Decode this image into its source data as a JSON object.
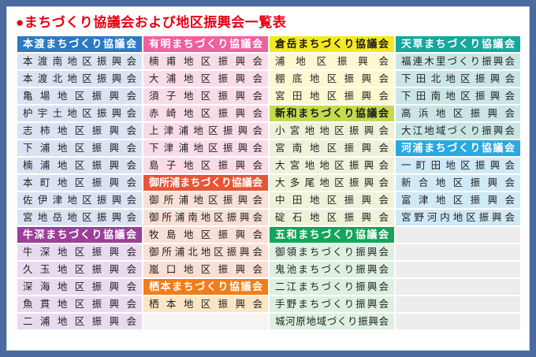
{
  "title": "●まちづくり協議会および地区振興会一覧表",
  "title_color": "#e50012",
  "frame_border_color": "#4a6b9e",
  "palette": {
    "hondo_header": {
      "bg": "#2b7ac4",
      "fg": "#ffffff"
    },
    "hondo_item": {
      "bg": "#dae3f3",
      "fg": "#222222"
    },
    "ushibuka_header": {
      "bg": "#9c3f9b",
      "fg": "#ffffff"
    },
    "ushibuka_item": {
      "bg": "#e9daf0",
      "fg": "#222222"
    },
    "ariake_header": {
      "bg": "#ee619e",
      "fg": "#ffffff"
    },
    "ariake_item": {
      "bg": "#fadce8",
      "fg": "#222222"
    },
    "goshoura_header": {
      "bg": "#e75437",
      "fg": "#ffffff"
    },
    "goshoura_item": {
      "bg": "#fadfd6",
      "fg": "#222222"
    },
    "sumoto_header": {
      "bg": "#f07d1b",
      "fg": "#ffffff"
    },
    "sumoto_item": {
      "bg": "#fbe6c3",
      "fg": "#222222"
    },
    "kuratake_header": {
      "bg": "#f4e823",
      "fg": "#1a1a1a"
    },
    "kuratake_item": {
      "bg": "#fcf8d0",
      "fg": "#222222"
    },
    "shinwa_header": {
      "bg": "#c6d94f",
      "fg": "#1a1a1a"
    },
    "shinwa_item": {
      "bg": "#eef2d9",
      "fg": "#222222"
    },
    "itsuwa_header": {
      "bg": "#13a65b",
      "fg": "#ffffff"
    },
    "itsuwa_item": {
      "bg": "#def0e0",
      "fg": "#222222"
    },
    "amakusa_header": {
      "bg": "#17a79d",
      "fg": "#ffffff"
    },
    "amakusa_item": {
      "bg": "#c9e6e5",
      "fg": "#222222"
    },
    "kawaura_header": {
      "bg": "#2aa9e1",
      "fg": "#ffffff"
    },
    "kawaura_item": {
      "bg": "#cfe9f7",
      "fg": "#222222"
    },
    "empty_light": {
      "bg": "#f6f4f2",
      "fg": "#222222"
    },
    "empty_gray": {
      "bg": "#ededed",
      "fg": "#222222"
    }
  },
  "columns": [
    {
      "cells": [
        {
          "kind": "header",
          "style": "hondo_header",
          "text": "本渡まちづくり協議会"
        },
        {
          "kind": "item",
          "style": "hondo_item",
          "text": "本渡南地区振興会"
        },
        {
          "kind": "item",
          "style": "hondo_item",
          "text": "本渡北地区振興会"
        },
        {
          "kind": "item",
          "style": "hondo_item",
          "text": "亀場地区振興会"
        },
        {
          "kind": "item",
          "style": "hondo_item",
          "text": "枦宇土地区振興会"
        },
        {
          "kind": "item",
          "style": "hondo_item",
          "text": "志柿地区振興会"
        },
        {
          "kind": "item",
          "style": "hondo_item",
          "text": "下浦地区振興会"
        },
        {
          "kind": "item",
          "style": "hondo_item",
          "text": "楠浦地区振興会"
        },
        {
          "kind": "item",
          "style": "hondo_item",
          "text": "本町地区振興会"
        },
        {
          "kind": "item",
          "style": "hondo_item",
          "text": "佐伊津地区振興会"
        },
        {
          "kind": "item",
          "style": "hondo_item",
          "text": "宮地岳地区振興会"
        },
        {
          "kind": "header",
          "style": "ushibuka_header",
          "text": "牛深まちづくり協議会"
        },
        {
          "kind": "item",
          "style": "ushibuka_item",
          "text": "牛深地区振興会"
        },
        {
          "kind": "item",
          "style": "ushibuka_item",
          "text": "久玉地区振興会"
        },
        {
          "kind": "item",
          "style": "ushibuka_item",
          "text": "深海地区振興会"
        },
        {
          "kind": "item",
          "style": "ushibuka_item",
          "text": "魚貫地区振興会"
        },
        {
          "kind": "item",
          "style": "ushibuka_item",
          "text": "二浦地区振興会"
        }
      ]
    },
    {
      "cells": [
        {
          "kind": "header",
          "style": "ariake_header",
          "text": "有明まちづくり協議会"
        },
        {
          "kind": "item",
          "style": "ariake_item",
          "text": "楠甫地区振興会"
        },
        {
          "kind": "item",
          "style": "ariake_item",
          "text": "大浦地区振興会"
        },
        {
          "kind": "item",
          "style": "ariake_item",
          "text": "須子地区振興会"
        },
        {
          "kind": "item",
          "style": "ariake_item",
          "text": "赤崎地区振興会"
        },
        {
          "kind": "item",
          "style": "ariake_item",
          "text": "上津浦地区振興会"
        },
        {
          "kind": "item",
          "style": "ariake_item",
          "text": "下津浦地区振興会"
        },
        {
          "kind": "item",
          "style": "ariake_item",
          "text": "島子地区振興会"
        },
        {
          "kind": "header",
          "style": "goshoura_header",
          "text": "御所浦まちづくり協議会"
        },
        {
          "kind": "item",
          "style": "goshoura_item",
          "text": "御所浦地区振興会"
        },
        {
          "kind": "item",
          "style": "goshoura_item",
          "text": "御所浦南地区振興会"
        },
        {
          "kind": "item",
          "style": "goshoura_item",
          "text": "牧島地区振興会"
        },
        {
          "kind": "item",
          "style": "goshoura_item",
          "text": "御所浦北地区振興会"
        },
        {
          "kind": "item",
          "style": "goshoura_item",
          "text": "嵐口地区振興会"
        },
        {
          "kind": "header",
          "style": "sumoto_header",
          "text": "栖本まちづくり協議会"
        },
        {
          "kind": "item",
          "style": "sumoto_item",
          "text": "栖本地区振興会"
        },
        {
          "kind": "empty",
          "style": "empty_light",
          "text": ""
        }
      ]
    },
    {
      "cells": [
        {
          "kind": "header",
          "style": "kuratake_header",
          "text": "倉岳まちづくり協議会"
        },
        {
          "kind": "item",
          "style": "kuratake_item",
          "text": "浦地区振興会"
        },
        {
          "kind": "item",
          "style": "kuratake_item",
          "text": "棚底地区振興会"
        },
        {
          "kind": "item",
          "style": "kuratake_item",
          "text": "宮田地区振興会"
        },
        {
          "kind": "header",
          "style": "shinwa_header",
          "text": "新和まちづくり協議会"
        },
        {
          "kind": "item",
          "style": "shinwa_item",
          "text": "小宮地地区振興会"
        },
        {
          "kind": "item",
          "style": "shinwa_item",
          "text": "宮南地区振興会"
        },
        {
          "kind": "item",
          "style": "shinwa_item",
          "text": "大宮地地区振興会"
        },
        {
          "kind": "item",
          "style": "shinwa_item",
          "text": "大多尾地区振興会"
        },
        {
          "kind": "item",
          "style": "shinwa_item",
          "text": "中田地区振興会"
        },
        {
          "kind": "item",
          "style": "shinwa_item",
          "text": "碇石地区振興会"
        },
        {
          "kind": "header",
          "style": "itsuwa_header",
          "text": "五和まちづくり協議会"
        },
        {
          "kind": "item",
          "style": "itsuwa_item",
          "text": "御領まちづくり振興会"
        },
        {
          "kind": "item",
          "style": "itsuwa_item",
          "text": "鬼池まちづくり振興会"
        },
        {
          "kind": "item",
          "style": "itsuwa_item",
          "text": "二江まちづくり振興会"
        },
        {
          "kind": "item",
          "style": "itsuwa_item",
          "text": "手野まちづくり振興会"
        },
        {
          "kind": "item",
          "style": "itsuwa_item",
          "text": "城河原地域づくり振興会"
        }
      ]
    },
    {
      "cells": [
        {
          "kind": "header",
          "style": "amakusa_header",
          "text": "天草まちづくり協議会"
        },
        {
          "kind": "item",
          "style": "amakusa_item",
          "text": "福連木里づくり振興会"
        },
        {
          "kind": "item",
          "style": "amakusa_item",
          "text": "下田北地区振興会"
        },
        {
          "kind": "item",
          "style": "amakusa_item",
          "text": "下田南地区振興会"
        },
        {
          "kind": "item",
          "style": "amakusa_item",
          "text": "高浜地区振興会"
        },
        {
          "kind": "item",
          "style": "amakusa_item",
          "text": "大江地域づくり振興会"
        },
        {
          "kind": "header",
          "style": "kawaura_header",
          "text": "河浦まちづくり協議会"
        },
        {
          "kind": "item",
          "style": "kawaura_item",
          "text": "一町田地区振興会"
        },
        {
          "kind": "item",
          "style": "kawaura_item",
          "text": "新合地区振興会"
        },
        {
          "kind": "item",
          "style": "kawaura_item",
          "text": "富津地区振興会"
        },
        {
          "kind": "item",
          "style": "kawaura_item",
          "text": "宮野河内地区振興会"
        },
        {
          "kind": "empty",
          "style": "empty_gray",
          "text": ""
        },
        {
          "kind": "empty",
          "style": "empty_gray",
          "text": ""
        },
        {
          "kind": "empty",
          "style": "empty_gray",
          "text": ""
        },
        {
          "kind": "empty",
          "style": "empty_gray",
          "text": ""
        },
        {
          "kind": "empty",
          "style": "empty_gray",
          "text": ""
        },
        {
          "kind": "empty",
          "style": "empty_gray",
          "text": ""
        }
      ]
    }
  ]
}
